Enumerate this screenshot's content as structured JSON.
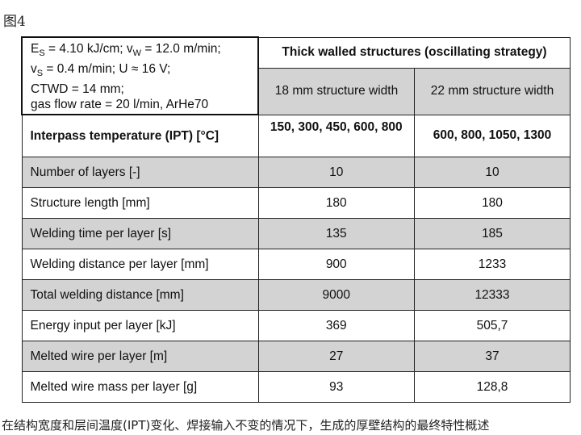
{
  "figure_label": "图4",
  "params": [
    "E_S = 4.10 kJ/cm; v_W = 12.0 m/min;",
    "v_S = 0.4 m/min; U ≈ 16 V;",
    "CTWD = 14 mm;",
    "gas flow rate = 20 l/min, ArHe70"
  ],
  "group_header": "Thick walled structures (oscillating strategy)",
  "columns": [
    "18 mm structure width",
    "22 mm structure width"
  ],
  "ipt": {
    "label": "Interpass temperature (IPT) [°C]",
    "v1": "150, 300, 450, 600, 800",
    "v2": "600, 800, 1050, 1300"
  },
  "rows": [
    {
      "label": "Number of layers [-]",
      "v1": "10",
      "v2": "10"
    },
    {
      "label": "Structure length [mm]",
      "v1": "180",
      "v2": "180"
    },
    {
      "label": "Welding time per layer [s]",
      "v1": "135",
      "v2": "185"
    },
    {
      "label": "Welding distance per layer [mm]",
      "v1": "900",
      "v2": "1233"
    },
    {
      "label": "Total welding distance [mm]",
      "v1": "9000",
      "v2": "12333"
    },
    {
      "label": "Energy input per layer [kJ]",
      "v1": "369",
      "v2": "505,7"
    },
    {
      "label": "Melted wire per layer [m]",
      "v1": "27",
      "v2": "37"
    },
    {
      "label": "Melted wire mass per layer [g]",
      "v1": "93",
      "v2": "128,8"
    }
  ],
  "caption": "在结构宽度和层间温度(IPT)变化、焊接输入不变的情况下，生成的厚壁结构的最终特性概述"
}
